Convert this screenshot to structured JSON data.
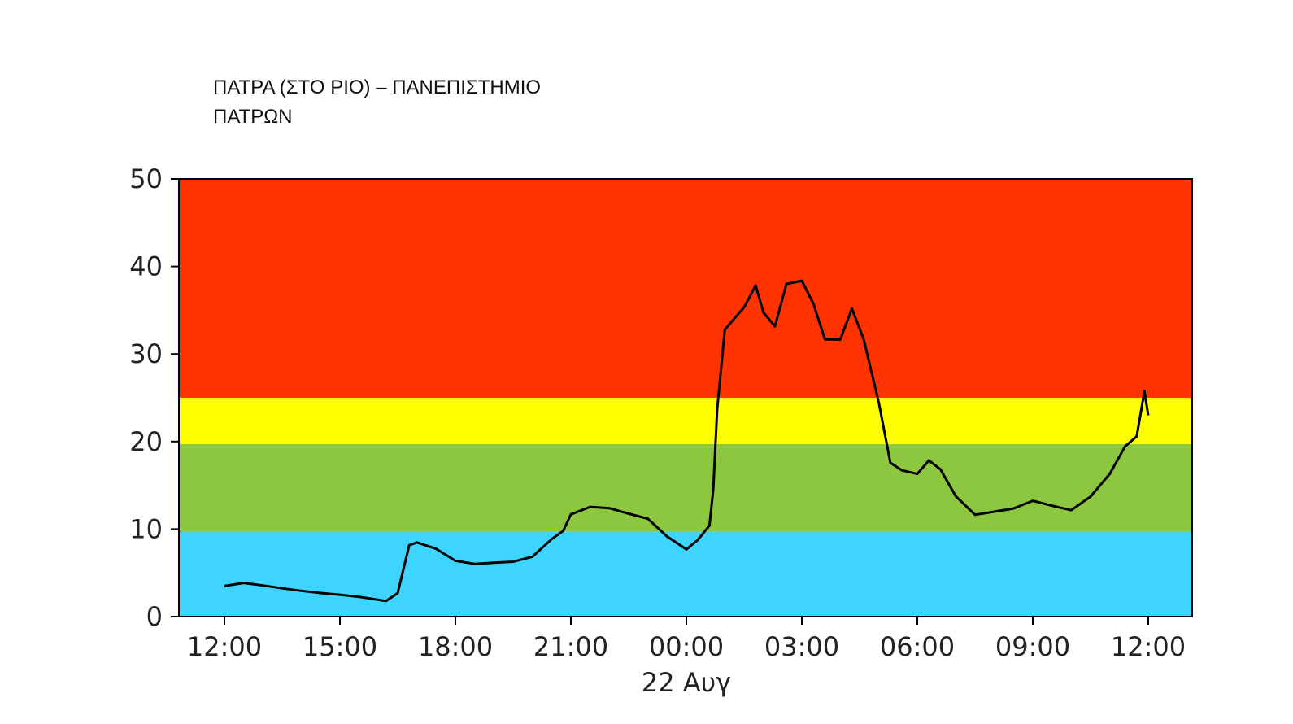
{
  "title": {
    "line1": "ΠΑΤΡΑ (ΣΤΟ ΡΙΟ) – ΠΑΝΕΠΙΣΤΗΜΙΟ",
    "line2": "ΠΑΤΡΩΝ"
  },
  "chart_data": {
    "type": "line",
    "xlabel": "22 Αυγ",
    "ylabel": "",
    "ylim": [
      0,
      50
    ],
    "yticks": [
      0,
      10,
      20,
      30,
      40,
      50
    ],
    "xlim_hours": [
      -1,
      21
    ],
    "xticks": [
      {
        "hour": 0,
        "label": "12:00"
      },
      {
        "hour": 3,
        "label": "15:00"
      },
      {
        "hour": 6,
        "label": "18:00"
      },
      {
        "hour": 9,
        "label": "21:00"
      },
      {
        "hour": 12,
        "label": "00:00"
      },
      {
        "hour": 15,
        "label": "03:00"
      },
      {
        "hour": 18,
        "label": "06:00"
      },
      {
        "hour": 21,
        "label": "09:00"
      },
      {
        "hour": 24,
        "label": "12:00"
      }
    ],
    "bands": [
      {
        "from": 0,
        "to": 9.7,
        "color": "#3dd5ff"
      },
      {
        "from": 9.7,
        "to": 19.7,
        "color": "#8dc63f"
      },
      {
        "from": 19.7,
        "to": 25,
        "color": "#ffff00"
      },
      {
        "from": 25,
        "to": 50,
        "color": "#ff3300"
      }
    ],
    "series": [
      {
        "color": "#000000",
        "x": [
          0,
          0.5,
          1,
          1.5,
          2,
          2.5,
          3,
          3.5,
          4,
          4.2,
          4.5,
          4.8,
          5,
          5.5,
          6,
          6.5,
          7,
          7.5,
          8,
          8.5,
          8.8,
          9,
          9.5,
          10,
          10.5,
          11,
          11.5,
          12,
          12.3,
          12.6,
          12.7,
          12.8,
          13.0,
          13.5,
          13.8,
          14.0,
          14.3,
          14.6,
          15.0,
          15.3,
          15.6,
          16.0,
          16.3,
          16.6,
          17.0,
          17.3,
          17.6,
          18.0,
          18.3,
          18.6,
          19.0,
          19.5,
          20.0,
          20.5,
          21.0,
          21.5,
          22.0,
          22.5,
          23.0,
          23.4,
          23.7,
          23.9,
          24.0
        ],
        "y": [
          3.5,
          3.7,
          3.3,
          2.9,
          2.6,
          2.4,
          2.3,
          2.2,
          2.0,
          2.0,
          3.0,
          8.5,
          8.8,
          8.0,
          6.5,
          6.0,
          6.0,
          6.0,
          6.5,
          8.5,
          9.5,
          11.5,
          12.5,
          12.5,
          12.0,
          11.5,
          9.5,
          8.0,
          9.0,
          10.5,
          14.5,
          23.5,
          32.5,
          35.0,
          37.5,
          34.5,
          33.0,
          38.0,
          38.5,
          36.0,
          32.0,
          32.0,
          35.5,
          32.0,
          24.5,
          17.5,
          16.5,
          16.0,
          17.5,
          16.5,
          13.5,
          11.5,
          12.0,
          12.5,
          13.5,
          13.0,
          12.5,
          14.0,
          16.5,
          19.5,
          20.5,
          25.5,
          23.0
        ]
      }
    ]
  }
}
